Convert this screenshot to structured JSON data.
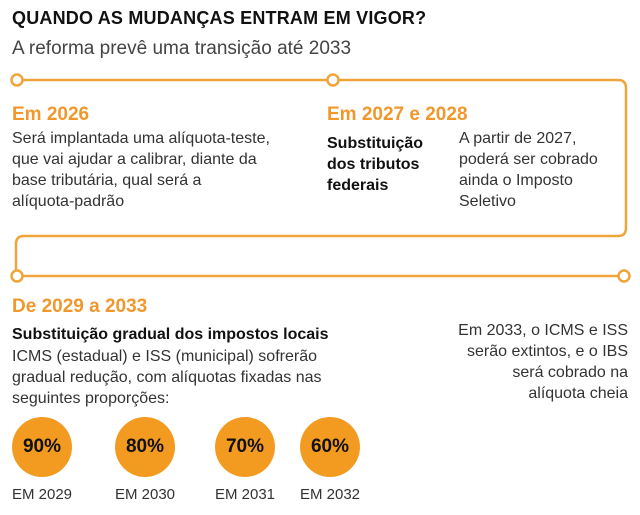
{
  "header": {
    "title": "QUANDO AS MUDANÇAS ENTRAM EM VIGOR?",
    "subtitle": "A reforma prevê uma transição até 2033"
  },
  "colors": {
    "accent": "#f39b21",
    "line": "#f0a53a"
  },
  "timeline": {
    "phase1": {
      "heading": "Em 2026",
      "text_lines": [
        "Será implantada uma alíquota-teste,",
        "que vai ajudar a calibrar, diante da",
        "base tributária, qual será a",
        "alíquota-padrão"
      ]
    },
    "phase2": {
      "heading": "Em 2027 e 2028",
      "bold_lines": [
        "Substituição",
        "dos tributos",
        "federais"
      ],
      "text_lines": [
        "A partir de 2027,",
        "poderá ser cobrado",
        "ainda o Imposto",
        "Seletivo"
      ]
    },
    "phase3": {
      "heading": "De 2029 a 2033",
      "bold_title": "Substituição gradual dos impostos locais",
      "text_lines": [
        "ICMS (estadual) e ISS (municipal) sofrerão",
        "gradual redução, com alíquotas fixadas nas",
        "seguintes proporções:"
      ],
      "side_lines": [
        "Em 2033, o ICMS e ISS",
        "serão extintos, e o IBS",
        "será cobrado na",
        "alíquota cheia"
      ],
      "rates": [
        {
          "value": "90%",
          "year": "EM 2029"
        },
        {
          "value": "80%",
          "year": "EM 2030"
        },
        {
          "value": "70%",
          "year": "EM 2031"
        },
        {
          "value": "60%",
          "year": "EM 2032"
        }
      ]
    }
  }
}
